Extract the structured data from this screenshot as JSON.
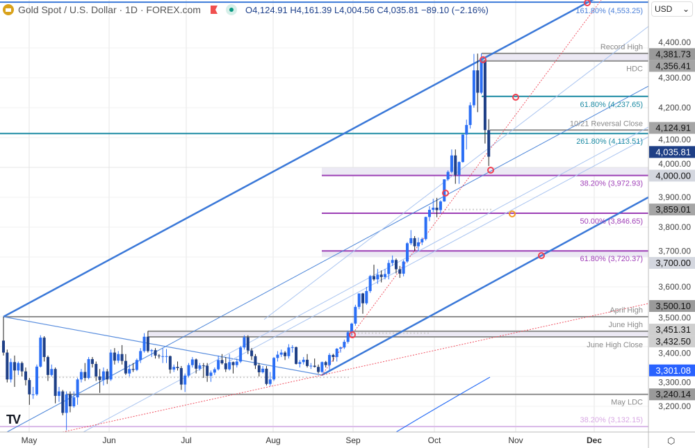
{
  "header": {
    "symbol": "Gold Spot / U.S. Dollar · 1D · FOREX.com",
    "open": "O4,124.91",
    "high": "H4,161.39",
    "low": "L4,004.56",
    "close": "C4,035.81",
    "change": "−89.10 (−2.16%)"
  },
  "currency_select": "USD",
  "colors": {
    "up": "#2a6ef5",
    "down": "#1e3f86",
    "channel": "#3a78d8",
    "fib_purple": "#9c3fb5",
    "fib_teal": "#1b8aa3",
    "level_gray": "#8e8e8e",
    "marker": "#f04050"
  },
  "time_axis": [
    "May",
    "Jun",
    "Jul",
    "Aug",
    "Sep",
    "Oct",
    "Nov",
    "Dec"
  ],
  "price_axis": [
    "4,400.00",
    "4,300.00",
    "4,200.00",
    "4,100.00",
    "4,000.00",
    "3,900.00",
    "3,800.00",
    "3,700.00",
    "3,600.00",
    "3,500.00",
    "3,400.00",
    "3,300.00",
    "3,200.00"
  ],
  "price_tags": [
    {
      "text": "4,381.73",
      "price": 4381.73,
      "style": "dark"
    },
    {
      "text": "4,356.41",
      "price": 4356.41,
      "style": "gray"
    },
    {
      "text": "4,124.91",
      "price": 4124.91,
      "style": "gray"
    },
    {
      "text": "4,035.81",
      "price": 4035.81,
      "style": "last"
    },
    {
      "text": "4,000.00",
      "price": 4000.0,
      "style": "light"
    },
    {
      "text": "3,859.01",
      "price": 3859.01,
      "style": "gray"
    },
    {
      "text": "3,700.00",
      "price": 3700.0,
      "style": "light"
    },
    {
      "text": "3,500.10",
      "price": 3500.1,
      "style": "dark"
    },
    {
      "text": "3,451.31",
      "price": 3451.31,
      "style": "lightgray"
    },
    {
      "text": "3,432.50",
      "price": 3432.5,
      "style": "lightgray"
    },
    {
      "text": "3,301.08",
      "price": 3301.08,
      "style": "ma"
    },
    {
      "text": "3,240.14",
      "price": 3240.14,
      "style": "dark"
    }
  ],
  "levels": [
    {
      "label": "161.80% (4,553.25)",
      "price": 4553.25,
      "kind": "channel"
    },
    {
      "label": "Record High",
      "price": 4381.73,
      "kind": "gray"
    },
    {
      "label": "HDC",
      "price": 4356.41,
      "kind": "gray"
    },
    {
      "label": "61.80% (4,237.65)",
      "price": 4237.65,
      "kind": "teal"
    },
    {
      "label": "10/21 Reversal Close",
      "price": 4124.91,
      "kind": "gray"
    },
    {
      "label": "261.80% (4,113.51)",
      "price": 4113.51,
      "kind": "teal"
    },
    {
      "label": "38.20% (3,972.93)",
      "price": 3972.93,
      "kind": "purple"
    },
    {
      "label": "50.00% (3,846.65)",
      "price": 3846.65,
      "kind": "purple"
    },
    {
      "label": "61.80% (3,720.37)",
      "price": 3720.37,
      "kind": "purple"
    },
    {
      "label": "April High",
      "price": 3500.1,
      "kind": "gray"
    },
    {
      "label": "June High",
      "price": 3451.31,
      "kind": "gray"
    },
    {
      "label": "June High Close",
      "price": 3432.5,
      "kind": "gray"
    },
    {
      "label": "May LDC",
      "price": 3240.14,
      "kind": "gray"
    },
    {
      "label": "38.20% (3,132.15)",
      "price": 3132.15,
      "kind": "lightpurple"
    }
  ],
  "chart_data": {
    "type": "candlestick",
    "x_start": "2025-04-22",
    "x_end": "2025-10-22",
    "ylim": [
      3100,
      4560
    ],
    "ohlc": [
      [
        3420,
        3500,
        3370,
        3380
      ],
      [
        3380,
        3390,
        3280,
        3290
      ],
      [
        3290,
        3360,
        3280,
        3348
      ],
      [
        3348,
        3370,
        3265,
        3320
      ],
      [
        3320,
        3350,
        3305,
        3345
      ],
      [
        3345,
        3350,
        3300,
        3317
      ],
      [
        3317,
        3330,
        3270,
        3288
      ],
      [
        3288,
        3295,
        3205,
        3240
      ],
      [
        3240,
        3265,
        3225,
        3240
      ],
      [
        3240,
        3340,
        3235,
        3333
      ],
      [
        3333,
        3438,
        3330,
        3430
      ],
      [
        3430,
        3435,
        3350,
        3365
      ],
      [
        3365,
        3370,
        3285,
        3305
      ],
      [
        3305,
        3340,
        3300,
        3325
      ],
      [
        3325,
        3330,
        3210,
        3235
      ],
      [
        3235,
        3265,
        3215,
        3250
      ],
      [
        3250,
        3255,
        3170,
        3178
      ],
      [
        3178,
        3250,
        3120,
        3240
      ],
      [
        3240,
        3250,
        3180,
        3200
      ],
      [
        3200,
        3250,
        3195,
        3230
      ],
      [
        3230,
        3295,
        3205,
        3290
      ],
      [
        3290,
        3325,
        3280,
        3315
      ],
      [
        3315,
        3345,
        3285,
        3295
      ],
      [
        3295,
        3365,
        3290,
        3358
      ],
      [
        3358,
        3365,
        3330,
        3342
      ],
      [
        3342,
        3350,
        3285,
        3300
      ],
      [
        3300,
        3325,
        3245,
        3288
      ],
      [
        3288,
        3330,
        3270,
        3317
      ],
      [
        3317,
        3325,
        3275,
        3290
      ],
      [
        3290,
        3390,
        3285,
        3380
      ],
      [
        3380,
        3395,
        3340,
        3353
      ],
      [
        3353,
        3385,
        3345,
        3375
      ],
      [
        3375,
        3405,
        3340,
        3352
      ],
      [
        3352,
        3375,
        3305,
        3310
      ],
      [
        3310,
        3340,
        3300,
        3325
      ],
      [
        3325,
        3345,
        3315,
        3322
      ],
      [
        3322,
        3360,
        3318,
        3355
      ],
      [
        3355,
        3395,
        3345,
        3385
      ],
      [
        3385,
        3445,
        3380,
        3433
      ],
      [
        3433,
        3452,
        3380,
        3385
      ],
      [
        3385,
        3392,
        3365,
        3388
      ],
      [
        3388,
        3395,
        3360,
        3370
      ],
      [
        3370,
        3375,
        3360,
        3368
      ],
      [
        3368,
        3395,
        3345,
        3368
      ],
      [
        3368,
        3392,
        3345,
        3368
      ],
      [
        3368,
        3370,
        3310,
        3323
      ],
      [
        3323,
        3340,
        3315,
        3332
      ],
      [
        3332,
        3350,
        3320,
        3328
      ],
      [
        3328,
        3335,
        3255,
        3273
      ],
      [
        3273,
        3310,
        3248,
        3303
      ],
      [
        3303,
        3345,
        3298,
        3338
      ],
      [
        3338,
        3365,
        3330,
        3357
      ],
      [
        3357,
        3360,
        3310,
        3326
      ],
      [
        3326,
        3345,
        3320,
        3337
      ],
      [
        3337,
        3345,
        3295,
        3336
      ],
      [
        3336,
        3345,
        3282,
        3302
      ],
      [
        3302,
        3320,
        3282,
        3313
      ],
      [
        3313,
        3330,
        3305,
        3324
      ],
      [
        3324,
        3370,
        3320,
        3355
      ],
      [
        3355,
        3375,
        3340,
        3344
      ],
      [
        3344,
        3365,
        3315,
        3324
      ],
      [
        3324,
        3375,
        3320,
        3348
      ],
      [
        3348,
        3350,
        3310,
        3338
      ],
      [
        3338,
        3360,
        3330,
        3350
      ],
      [
        3350,
        3402,
        3345,
        3397
      ],
      [
        3397,
        3438,
        3390,
        3431
      ],
      [
        3431,
        3438,
        3375,
        3387
      ],
      [
        3387,
        3395,
        3355,
        3368
      ],
      [
        3368,
        3375,
        3325,
        3337
      ],
      [
        3337,
        3345,
        3300,
        3314
      ],
      [
        3314,
        3335,
        3310,
        3326
      ],
      [
        3326,
        3335,
        3270,
        3275
      ],
      [
        3275,
        3315,
        3268,
        3290
      ],
      [
        3290,
        3365,
        3285,
        3362
      ],
      [
        3362,
        3385,
        3350,
        3373
      ],
      [
        3373,
        3390,
        3365,
        3380
      ],
      [
        3380,
        3385,
        3355,
        3368
      ],
      [
        3368,
        3408,
        3360,
        3397
      ],
      [
        3397,
        3405,
        3380,
        3398
      ],
      [
        3398,
        3400,
        3340,
        3342
      ],
      [
        3342,
        3355,
        3330,
        3348
      ],
      [
        3348,
        3365,
        3340,
        3356
      ],
      [
        3356,
        3375,
        3330,
        3335
      ],
      [
        3335,
        3345,
        3325,
        3336
      ],
      [
        3336,
        3360,
        3330,
        3332
      ],
      [
        3332,
        3340,
        3310,
        3315
      ],
      [
        3315,
        3350,
        3312,
        3348
      ],
      [
        3348,
        3352,
        3330,
        3338
      ],
      [
        3338,
        3378,
        3322,
        3372
      ],
      [
        3372,
        3376,
        3350,
        3365
      ],
      [
        3365,
        3395,
        3350,
        3393
      ],
      [
        3393,
        3400,
        3380,
        3397
      ],
      [
        3397,
        3423,
        3392,
        3416
      ],
      [
        3416,
        3453,
        3410,
        3448
      ],
      [
        3448,
        3480,
        3436,
        3477
      ],
      [
        3477,
        3540,
        3470,
        3533
      ],
      [
        3533,
        3578,
        3525,
        3578
      ],
      [
        3578,
        3580,
        3510,
        3545
      ],
      [
        3545,
        3600,
        3540,
        3586
      ],
      [
        3586,
        3640,
        3580,
        3636
      ],
      [
        3636,
        3674,
        3620,
        3625
      ],
      [
        3625,
        3660,
        3610,
        3641
      ],
      [
        3641,
        3655,
        3615,
        3633
      ],
      [
        3633,
        3660,
        3625,
        3643
      ],
      [
        3643,
        3690,
        3625,
        3680
      ],
      [
        3680,
        3705,
        3670,
        3690
      ],
      [
        3690,
        3695,
        3645,
        3659
      ],
      [
        3659,
        3670,
        3630,
        3644
      ],
      [
        3644,
        3690,
        3635,
        3685
      ],
      [
        3685,
        3750,
        3680,
        3746
      ],
      [
        3746,
        3790,
        3740,
        3763
      ],
      [
        3763,
        3770,
        3720,
        3736
      ],
      [
        3736,
        3765,
        3720,
        3749
      ],
      [
        3749,
        3765,
        3740,
        3760
      ],
      [
        3760,
        3835,
        3755,
        3834
      ],
      [
        3834,
        3870,
        3820,
        3858
      ],
      [
        3858,
        3895,
        3850,
        3865
      ],
      [
        3865,
        3898,
        3833,
        3857
      ],
      [
        3857,
        3890,
        3845,
        3886
      ],
      [
        3886,
        3960,
        3885,
        3960
      ],
      [
        3960,
        3990,
        3955,
        3985
      ],
      [
        3985,
        4060,
        3980,
        4040
      ],
      [
        4040,
        4060,
        3945,
        3975
      ],
      [
        3975,
        4020,
        3945,
        4018
      ],
      [
        4018,
        4110,
        4016,
        4110
      ],
      [
        4110,
        4160,
        4060,
        4142
      ],
      [
        4142,
        4218,
        4130,
        4208
      ],
      [
        4208,
        4380,
        4200,
        4325
      ],
      [
        4325,
        4381,
        4185,
        4250
      ],
      [
        4250,
        4381.73,
        4245,
        4356.41
      ],
      [
        4356.41,
        4360,
        4080,
        4124.91
      ],
      [
        4124.91,
        4161.39,
        4004.56,
        4035.81
      ]
    ],
    "moving_average_last": 3301.08
  }
}
